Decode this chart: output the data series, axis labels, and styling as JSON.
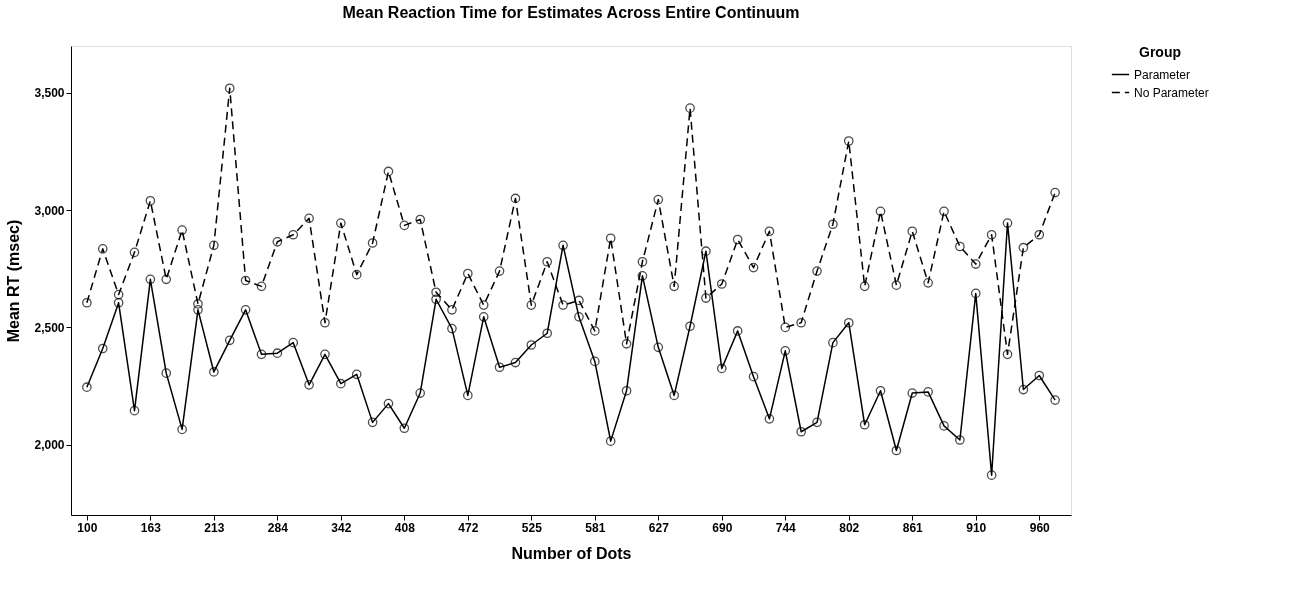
{
  "chart_data": {
    "type": "line",
    "title": "Mean Reaction Time for Estimates Across Entire Continuum",
    "xlabel": "Number of Dots",
    "ylabel": "Mean RT (msec)",
    "legend_title": "Group",
    "categories": [
      "100",
      null,
      null,
      null,
      "163",
      null,
      null,
      null,
      "213",
      null,
      null,
      null,
      "284",
      null,
      null,
      null,
      "342",
      null,
      null,
      null,
      "408",
      null,
      null,
      null,
      "472",
      null,
      null,
      null,
      "525",
      null,
      null,
      null,
      "581",
      null,
      null,
      null,
      "627",
      null,
      null,
      null,
      "690",
      null,
      null,
      null,
      "744",
      null,
      null,
      null,
      "802",
      null,
      null,
      null,
      "861",
      null,
      null,
      null,
      "910",
      null,
      null,
      null,
      "960",
      null
    ],
    "series": [
      {
        "name": "Parameter",
        "color": "#000000",
        "line_style": "solid",
        "values": [
          2245,
          2410,
          2605,
          2145,
          2705,
          2305,
          2065,
          2575,
          2310,
          2445,
          2575,
          2385,
          2390,
          2435,
          2255,
          2385,
          2260,
          2300,
          2095,
          2175,
          2070,
          2220,
          2620,
          2495,
          2210,
          2545,
          2330,
          2350,
          2425,
          2475,
          2850,
          2545,
          2355,
          2015,
          2230,
          2720,
          2415,
          2210,
          2505,
          2825,
          2325,
          2485,
          2290,
          2110,
          2400,
          2055,
          2095,
          2435,
          2520,
          2085,
          2230,
          1975,
          2220,
          2225,
          2080,
          2020,
          2645,
          1870,
          2945,
          2235,
          2295,
          2190
        ]
      },
      {
        "name": "No Parameter",
        "color": "#000000",
        "line_style": "dashed",
        "values": [
          2605,
          2835,
          2640,
          2820,
          3040,
          2705,
          2915,
          2600,
          2850,
          3520,
          2700,
          2675,
          2865,
          2895,
          2965,
          2520,
          2945,
          2725,
          2860,
          3165,
          2935,
          2960,
          2650,
          2575,
          2730,
          2595,
          2740,
          3050,
          2595,
          2780,
          2595,
          2615,
          2485,
          2880,
          2430,
          2780,
          3045,
          2675,
          3435,
          2625,
          2685,
          2875,
          2755,
          2910,
          2500,
          2520,
          2740,
          2940,
          3295,
          2675,
          2995,
          2680,
          2910,
          2690,
          2995,
          2845,
          2770,
          2895,
          2385,
          2840,
          2895,
          3075
        ]
      }
    ],
    "ylim": [
      1700,
      3700
    ],
    "yticks": [
      {
        "value": 2000,
        "label": "2,000"
      },
      {
        "value": 2500,
        "label": "2,500"
      },
      {
        "value": 3000,
        "label": "3,000"
      },
      {
        "value": 3500,
        "label": "3,500"
      }
    ],
    "marker": "circle",
    "grid": false,
    "legend": "top right"
  }
}
